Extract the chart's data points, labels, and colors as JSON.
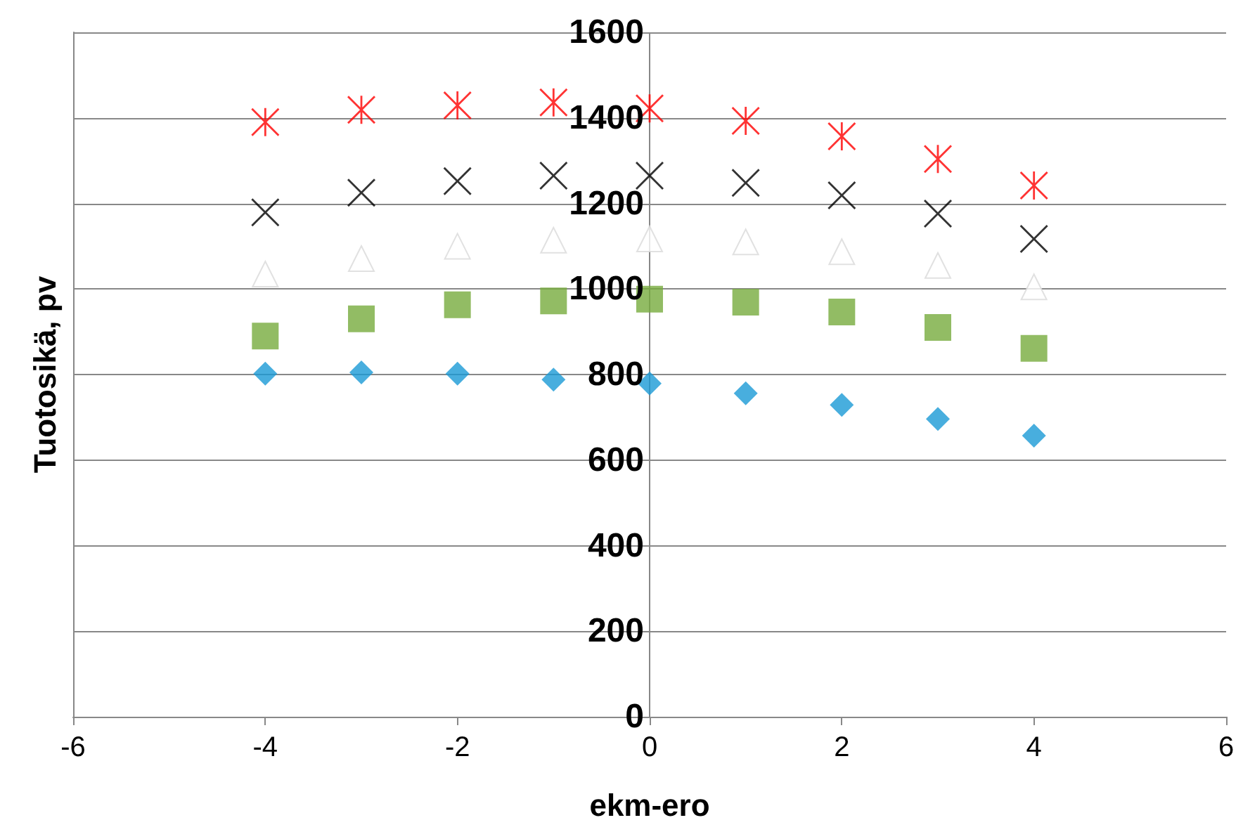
{
  "chart_data": {
    "type": "scatter",
    "xlabel": "ekm-ero",
    "ylabel": "Tuotosikä, pv",
    "x": [
      -4,
      -3,
      -2,
      -1,
      0,
      1,
      2,
      3,
      4
    ],
    "xlim": [
      -6,
      6
    ],
    "xticks": [
      -6,
      -4,
      -2,
      0,
      2,
      4,
      6
    ],
    "ylim": [
      0,
      1600
    ],
    "yticks": [
      0,
      200,
      400,
      600,
      800,
      1000,
      1200,
      1400,
      1600
    ],
    "grid": "y",
    "series": [
      {
        "color": "#ff0000",
        "marker": "star",
        "values": [
          1390,
          1419,
          1429,
          1436,
          1422,
          1393,
          1357,
          1304,
          1242
        ]
      },
      {
        "color": "#000000",
        "marker": "cross",
        "values": [
          1179,
          1225,
          1252,
          1265,
          1265,
          1248,
          1219,
          1176,
          1117
        ]
      },
      {
        "color": "#ffffff",
        "marker": "triangle",
        "values": [
          1035,
          1071,
          1100,
          1114,
          1117,
          1110,
          1087,
          1055,
          1005
        ]
      },
      {
        "color": "#77ab3d",
        "marker": "square",
        "values": [
          890,
          930,
          963,
          972,
          976,
          969,
          946,
          910,
          861
        ]
      },
      {
        "color": "#1a9ad6",
        "marker": "diamond",
        "values": [
          802,
          805,
          802,
          788,
          779,
          756,
          729,
          696,
          657
        ]
      }
    ]
  }
}
